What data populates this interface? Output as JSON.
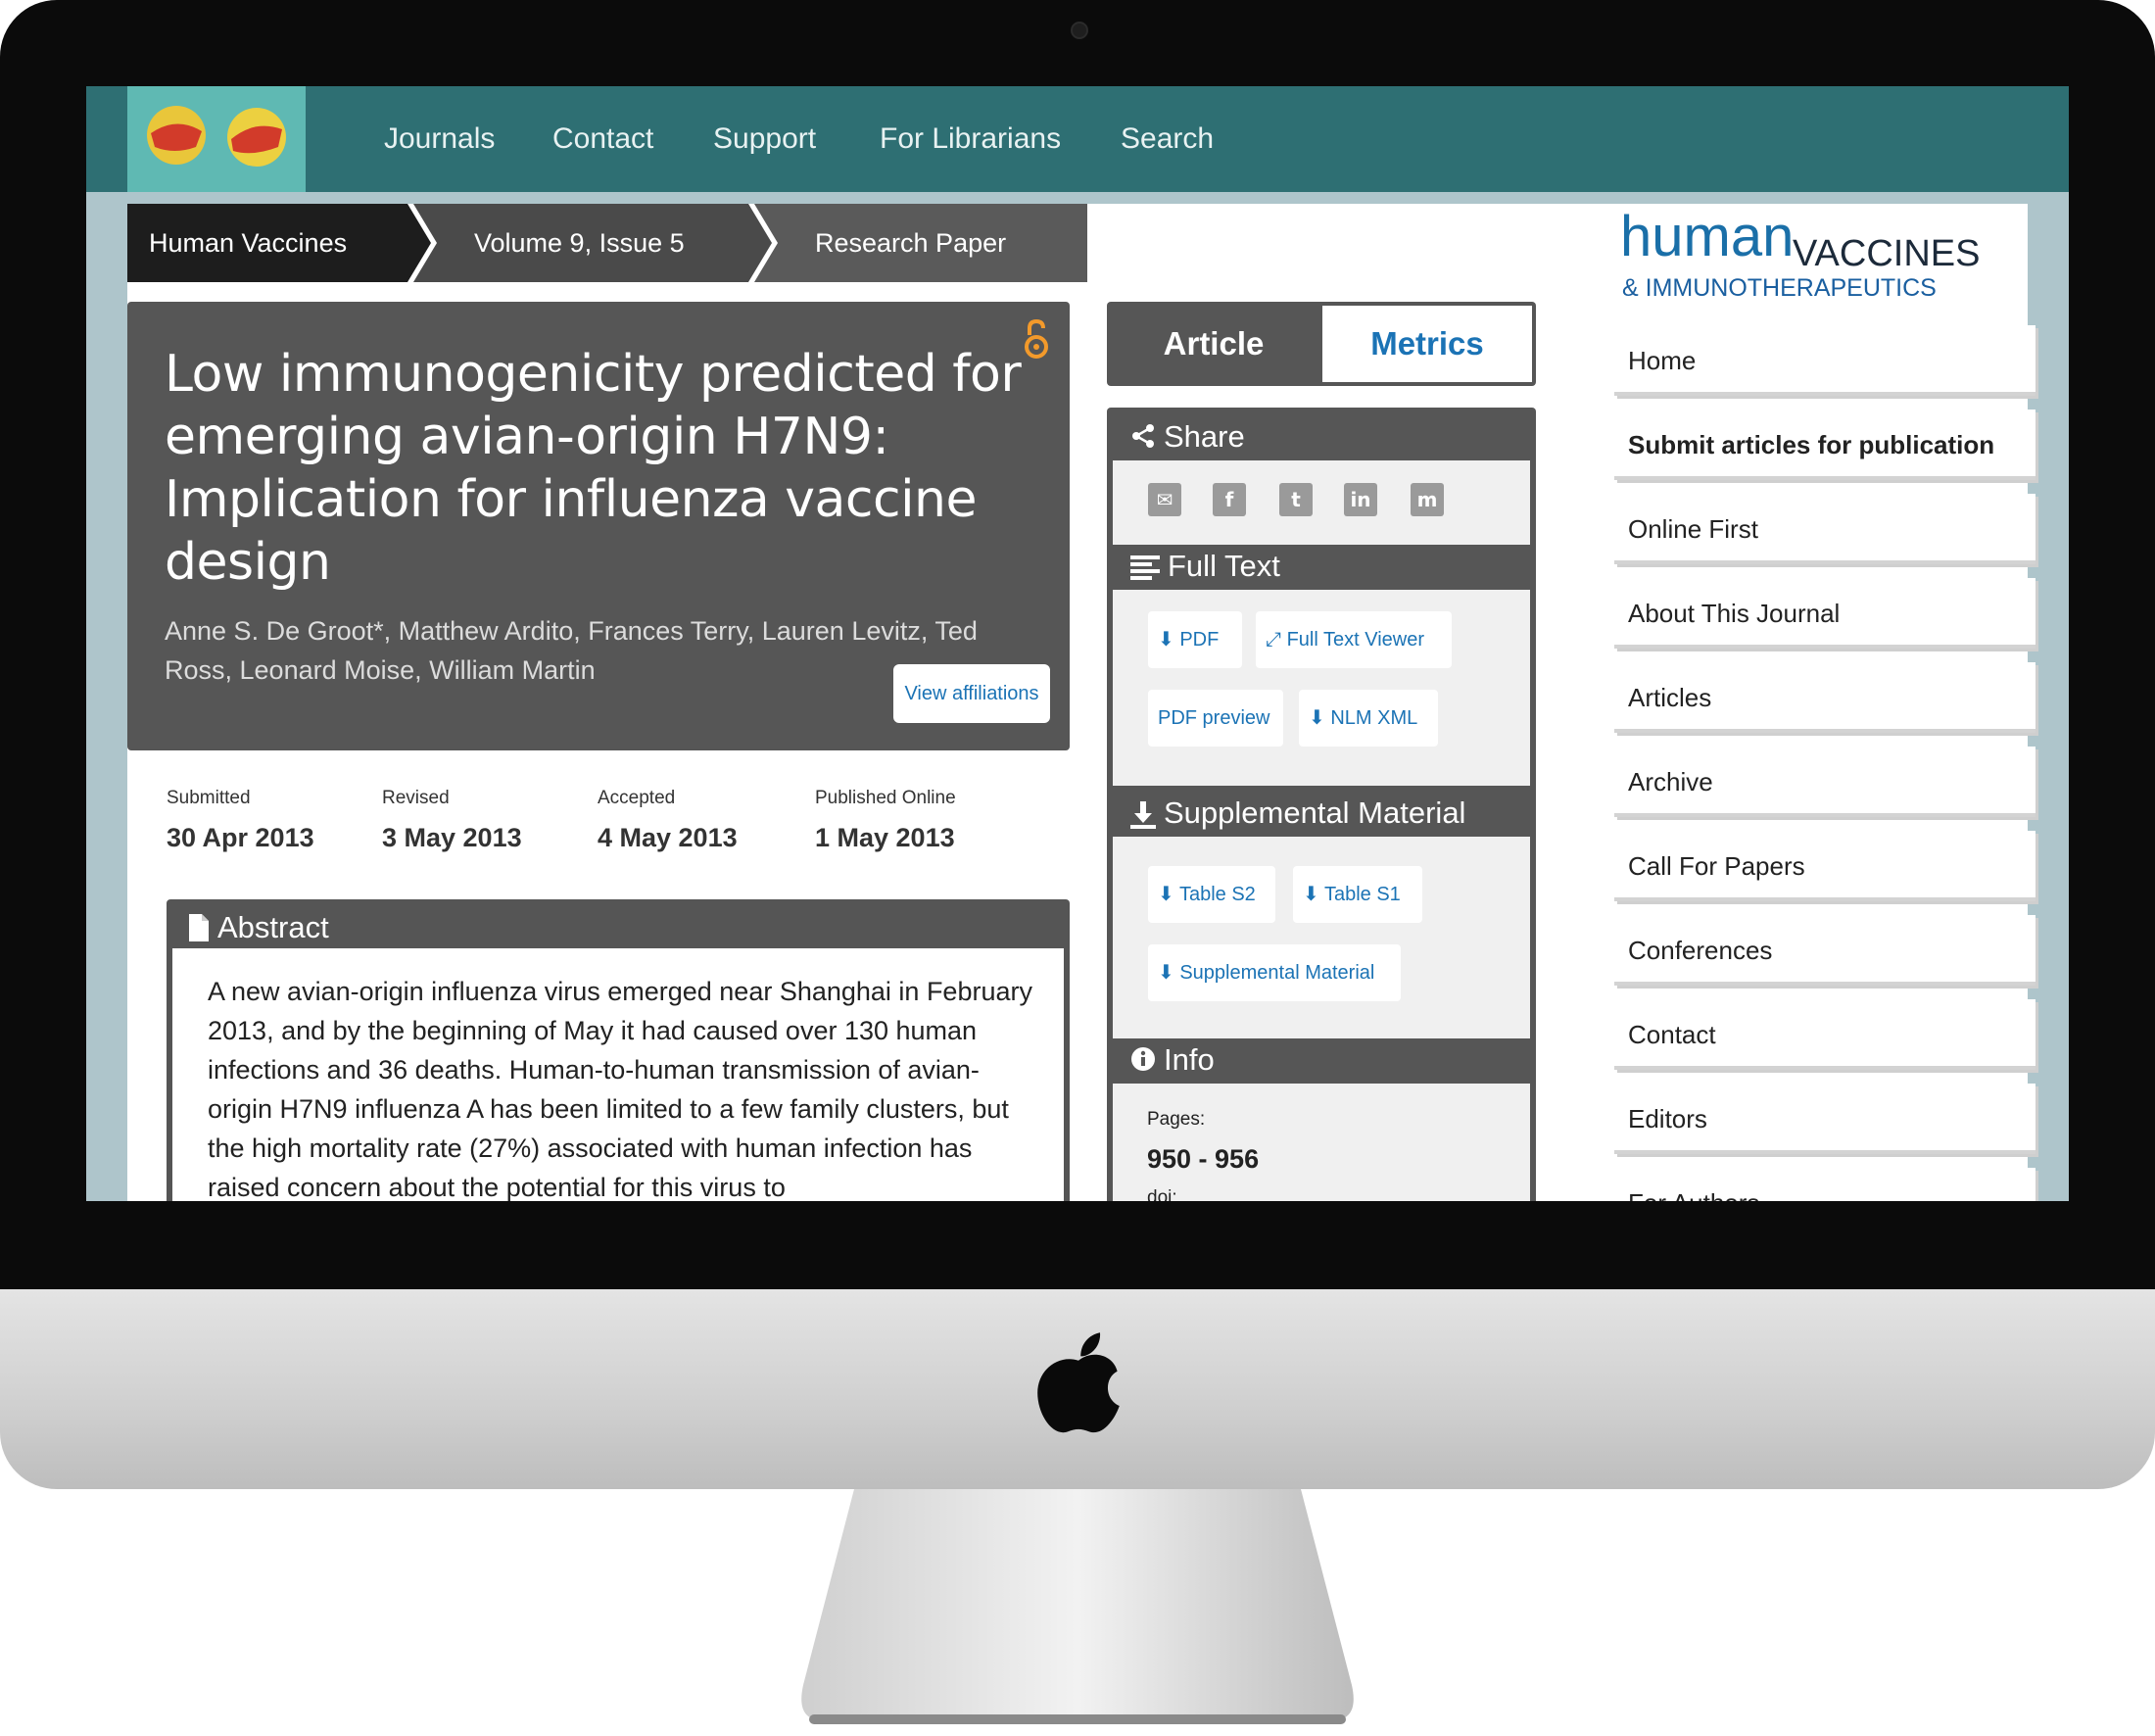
{
  "nav": {
    "items": [
      "Journals",
      "Contact",
      "Support",
      "For Librarians",
      "Search"
    ]
  },
  "breadcrumb": [
    "Human Vaccines",
    "Volume 9, Issue 5",
    "Research Paper"
  ],
  "article": {
    "title": "Low immunogenicity predicted for emerging avian-origin H7N9: Implication for influenza vaccine design",
    "authors": "Anne S. De Groot*, Matthew Ardito, Frances Terry, Lauren Levitz, Ted Ross, Leonard Moise, William Martin",
    "view_affiliations": "View affiliations",
    "dates": [
      {
        "label": "Submitted",
        "value": "30 Apr 2013"
      },
      {
        "label": "Revised",
        "value": "3 May 2013"
      },
      {
        "label": "Accepted",
        "value": "4 May 2013"
      },
      {
        "label": "Published Online",
        "value": "1 May 2013"
      }
    ],
    "abstract_heading": "Abstract",
    "abstract_text": "A new avian-origin influenza virus emerged near Shanghai in February 2013, and by the beginning of May it had caused over 130 human infections and 36 deaths. Human-to-human transmission of avian-origin H7N9 influenza A has been limited to a few family clusters, but the high mortality rate (27%) associated with human infection has raised concern about the potential for this virus to"
  },
  "tabs": {
    "article": "Article",
    "metrics": "Metrics"
  },
  "panel": {
    "share": "Share",
    "share_icons": [
      "email-icon",
      "facebook-icon",
      "twitter-icon",
      "linkedin-icon",
      "mendeley-icon"
    ],
    "full_text": "Full Text",
    "full_text_links": [
      "PDF",
      "Full Text Viewer",
      "PDF preview",
      "NLM XML"
    ],
    "supplemental": "Supplemental Material",
    "supplemental_links": [
      "Table S2",
      "Table S1",
      "Supplemental Material"
    ],
    "info": "Info",
    "pages_label": "Pages:",
    "pages_value": "950 - 956",
    "doi_label": "doi:"
  },
  "brand": {
    "line1": "human",
    "line2": "VACCINES",
    "line3": "& IMMUNOTHERAPEUTICS"
  },
  "sidebar": {
    "items": [
      "Home",
      "Submit articles for publication",
      "Online First",
      "About This Journal",
      "Articles",
      "Archive",
      "Call For Papers",
      "Conferences",
      "Contact",
      "Editors",
      "For Authors"
    ]
  },
  "colors": {
    "nav": "#2e6f73",
    "accent": "#1b73b5",
    "card": "#565656",
    "oa": "#f39a2b"
  }
}
